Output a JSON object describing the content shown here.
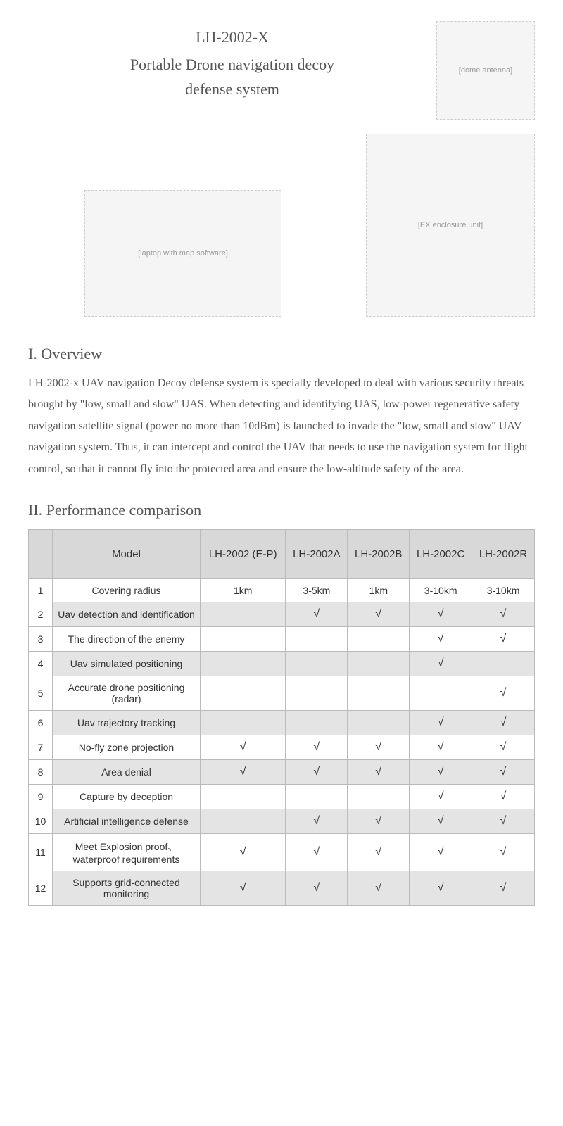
{
  "header": {
    "model_code": "LH-2002-X",
    "product_name_line1": "Portable Drone navigation decoy",
    "product_name_line2": "defense system"
  },
  "images": {
    "antenna_label": "[dome antenna]",
    "laptop_label": "[laptop with map software]",
    "box_label": "[EX enclosure unit]"
  },
  "overview": {
    "title": "I. Overview",
    "text": "LH-2002-x UAV navigation Decoy defense system is specially developed to deal with various security threats brought by \"low, small and slow\" UAS. When detecting and identifying UAS, low-power regenerative safety navigation satellite signal (power no more than 10dBm) is launched to invade the \"low, small and slow\" UAV navigation system. Thus, it can intercept and control the UAV that needs to use the navigation system for flight control, so that it cannot fly into the protected area and ensure the low-altitude safety of the area."
  },
  "comparison": {
    "title": "II. Performance comparison",
    "columns": [
      "",
      "Model",
      "LH-2002 (E-P)",
      "LH-2002A",
      "LH-2002B",
      "LH-2002C",
      "LH-2002R"
    ],
    "check_mark": "√",
    "rows": [
      {
        "n": "1",
        "feature": "Covering radius",
        "vals": [
          "1km",
          "3-5km",
          "1km",
          "3-10km",
          "3-10km"
        ]
      },
      {
        "n": "2",
        "feature": "Uav detection and identification",
        "vals": [
          "",
          "√",
          "√",
          "√",
          "√"
        ]
      },
      {
        "n": "3",
        "feature": "The direction of the enemy",
        "vals": [
          "",
          "",
          "",
          "√",
          "√"
        ]
      },
      {
        "n": "4",
        "feature": "Uav simulated positioning",
        "vals": [
          "",
          "",
          "",
          "√",
          ""
        ]
      },
      {
        "n": "5",
        "feature": "Accurate drone positioning (radar)",
        "vals": [
          "",
          "",
          "",
          "",
          "√"
        ]
      },
      {
        "n": "6",
        "feature": "Uav trajectory tracking",
        "vals": [
          "",
          "",
          "",
          "√",
          "√"
        ]
      },
      {
        "n": "7",
        "feature": "No-fly zone projection",
        "vals": [
          "√",
          "√",
          "√",
          "√",
          "√"
        ]
      },
      {
        "n": "8",
        "feature": "Area denial",
        "vals": [
          "√",
          "√",
          "√",
          "√",
          "√"
        ]
      },
      {
        "n": "9",
        "feature": "Capture by deception",
        "vals": [
          "",
          "",
          "",
          "√",
          "√"
        ]
      },
      {
        "n": "10",
        "feature": "Artificial intelligence defense",
        "vals": [
          "",
          "√",
          "√",
          "√",
          "√"
        ]
      },
      {
        "n": "11",
        "feature": "Meet Explosion proof、waterproof  requirements",
        "vals": [
          "√",
          "√",
          "√",
          "√",
          "√"
        ]
      },
      {
        "n": "12",
        "feature": "Supports grid-connected monitoring",
        "vals": [
          "√",
          "√",
          "√",
          "√",
          "√"
        ]
      }
    ],
    "header_bg": "#d8d8d8",
    "row_even_bg": "#e4e4e4",
    "row_odd_bg": "#ffffff",
    "border_color": "#bbbbbb"
  }
}
